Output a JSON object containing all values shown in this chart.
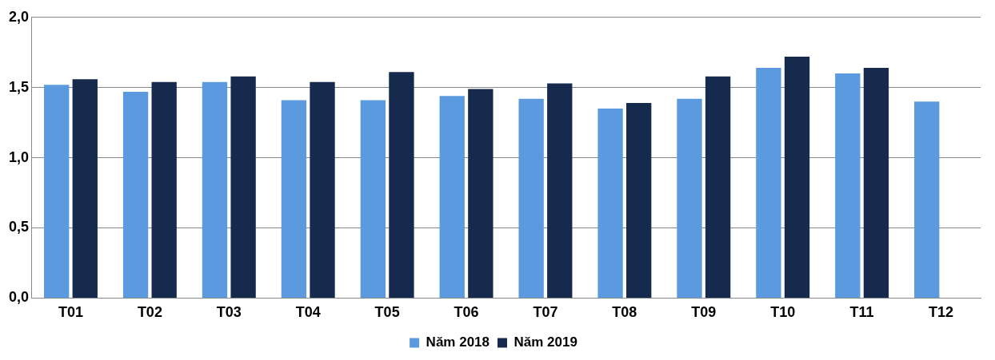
{
  "chart_data": {
    "type": "bar",
    "categories": [
      "T01",
      "T02",
      "T03",
      "T04",
      "T05",
      "T06",
      "T07",
      "T08",
      "T09",
      "T10",
      "T11",
      "T12"
    ],
    "series": [
      {
        "name": "Năm 2018",
        "color": "#5b9ade",
        "values": [
          1.52,
          1.47,
          1.54,
          1.41,
          1.41,
          1.44,
          1.42,
          1.35,
          1.42,
          1.64,
          1.6,
          1.4
        ]
      },
      {
        "name": "Năm 2019",
        "color": "#152a4c",
        "values": [
          1.56,
          1.54,
          1.58,
          1.54,
          1.61,
          1.49,
          1.53,
          1.39,
          1.58,
          1.72,
          1.64,
          null
        ]
      }
    ],
    "ylim": [
      0,
      2
    ],
    "yticks": [
      {
        "value": 0,
        "label": "0,0"
      },
      {
        "value": 0.5,
        "label": "0,5"
      },
      {
        "value": 1,
        "label": "1,0"
      },
      {
        "value": 1.5,
        "label": "1,5"
      },
      {
        "value": 2,
        "label": "2,0"
      }
    ],
    "grid": "y",
    "legend": "bottom"
  }
}
